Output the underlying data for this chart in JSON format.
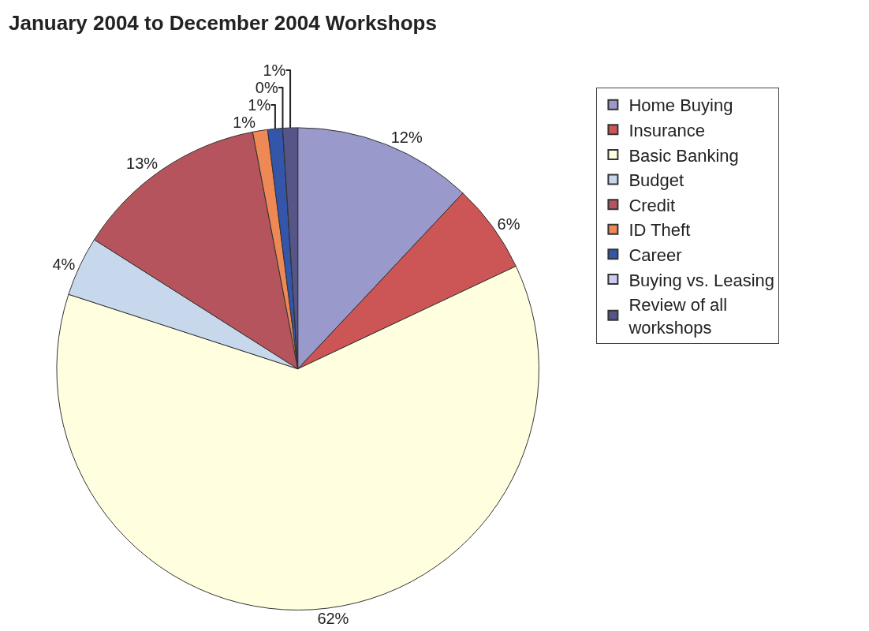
{
  "chart_data": {
    "type": "pie",
    "title": "January 2004 to December 2004 Workshops",
    "categories": [
      "Home Buying",
      "Insurance",
      "Basic Banking",
      "Budget",
      "Credit",
      "ID Theft",
      "Career",
      "Buying vs. Leasing",
      "Review of all workshops"
    ],
    "values": [
      12,
      6,
      62,
      4,
      13,
      1,
      1,
      0,
      1
    ],
    "value_labels": [
      "12%",
      "6%",
      "62%",
      "4%",
      "13%",
      "1%",
      "1%",
      "0%",
      "1%"
    ],
    "colors": [
      "#9999cc",
      "#cc5555",
      "#ffffe0",
      "#c8d8ec",
      "#b5545c",
      "#ee8855",
      "#3355aa",
      "#ccccee",
      "#555588"
    ],
    "legend": "right"
  }
}
